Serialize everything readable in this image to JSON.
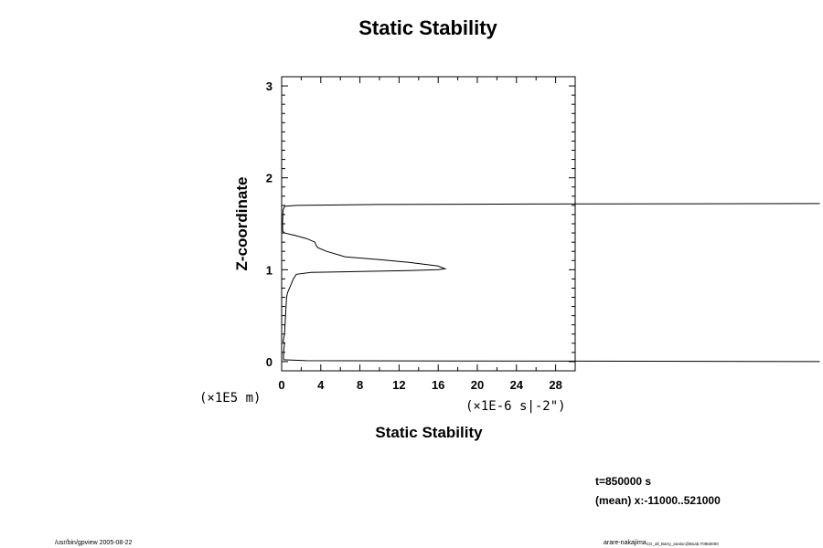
{
  "chart_data": {
    "type": "line",
    "title": "Static Stability",
    "xlabel": "Static Stability",
    "ylabel": "Z-coordinate",
    "xunit": "(×1E-6 s|-2\")",
    "yunit": "(×1E5 m)",
    "xlim": [
      0,
      30
    ],
    "ylim": [
      -0.1,
      3.1
    ],
    "xticks": [
      0,
      4,
      8,
      12,
      16,
      20,
      24,
      28
    ],
    "yticks": [
      0,
      1,
      2,
      3
    ],
    "xtick_labels": [
      "0",
      "4",
      "8",
      "12",
      "16",
      "20",
      "24",
      "28"
    ],
    "ytick_labels": [
      "0",
      "1",
      "2",
      "3"
    ],
    "grid": false,
    "series": [
      {
        "points": [
          [
            55,
            0.0
          ],
          [
            2.5,
            0.01
          ],
          [
            0.2,
            0.02
          ],
          [
            0.2,
            0.1
          ],
          [
            0.3,
            0.2
          ],
          [
            0.15,
            0.22
          ],
          [
            0.3,
            0.3
          ],
          [
            0.35,
            0.4
          ],
          [
            0.4,
            0.5
          ],
          [
            0.45,
            0.6
          ],
          [
            0.5,
            0.7
          ],
          [
            0.6,
            0.75
          ],
          [
            0.8,
            0.8
          ],
          [
            1.0,
            0.85
          ],
          [
            1.2,
            0.9
          ],
          [
            1.5,
            0.95
          ],
          [
            3.0,
            0.97
          ],
          [
            8.0,
            0.98
          ],
          [
            13.0,
            0.99
          ],
          [
            16.0,
            1.0
          ],
          [
            16.7,
            1.01
          ],
          [
            16.0,
            1.04
          ],
          [
            13.0,
            1.08
          ],
          [
            10.0,
            1.11
          ],
          [
            6.5,
            1.14
          ],
          [
            4.6,
            1.2
          ],
          [
            3.7,
            1.24
          ],
          [
            3.5,
            1.27
          ],
          [
            3.4,
            1.3
          ],
          [
            2.5,
            1.34
          ],
          [
            1.5,
            1.37
          ],
          [
            0.3,
            1.4
          ],
          [
            0.1,
            1.42
          ],
          [
            0.1,
            1.55
          ],
          [
            0.15,
            1.65
          ],
          [
            0.3,
            1.69
          ],
          [
            1.5,
            1.7
          ],
          [
            10.0,
            1.71
          ],
          [
            25.0,
            1.715
          ],
          [
            55,
            1.72
          ]
        ]
      }
    ]
  },
  "info": {
    "time": "t=850000 s",
    "mean": "(mean) x:-11000..521000"
  },
  "footer": {
    "left": "/usr/bin/gpview 2005-08-22",
    "right_main": "arare-nakajima",
    "right_sub": "CO_all_Barry_analoc@Bsab,T0850000"
  }
}
